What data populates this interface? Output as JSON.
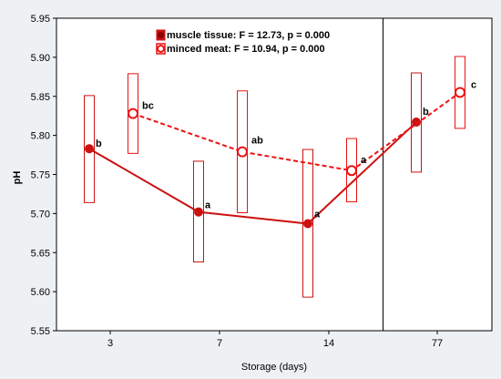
{
  "chart_data": {
    "type": "line",
    "xlabel": "Storage (days)",
    "ylabel": "pH",
    "ylim": [
      5.55,
      5.95
    ],
    "yticks": [
      "5.55",
      "5.60",
      "5.65",
      "5.70",
      "5.75",
      "5.80",
      "5.85",
      "5.90",
      "5.95"
    ],
    "categories": [
      "3",
      "7",
      "14",
      "77"
    ],
    "grid": false,
    "legend_position": "top-center",
    "divider_between": [
      "14",
      "77"
    ],
    "series": [
      {
        "name": "muscle tissue: F = 12.73, p = 0.000",
        "color": "#cc1111",
        "line_style": "solid",
        "marker": "filled-circle",
        "values": [
          5.783,
          5.702,
          5.687,
          5.817
        ],
        "ci_low": [
          5.714,
          5.638,
          5.593,
          5.753
        ],
        "ci_high": [
          5.851,
          5.767,
          5.782,
          5.88
        ],
        "letters": [
          "b",
          "a",
          "a",
          "b"
        ]
      },
      {
        "name": "minced meat: F = 10.94, p = 0.000",
        "color": "#ee1111",
        "line_style": "dashed",
        "marker": "open-circle",
        "values": [
          5.828,
          5.779,
          5.755,
          5.855
        ],
        "ci_low": [
          5.777,
          5.701,
          5.715,
          5.809
        ],
        "ci_high": [
          5.879,
          5.857,
          5.796,
          5.901
        ],
        "letters": [
          "bc",
          "ab",
          "a",
          "c"
        ]
      }
    ]
  }
}
